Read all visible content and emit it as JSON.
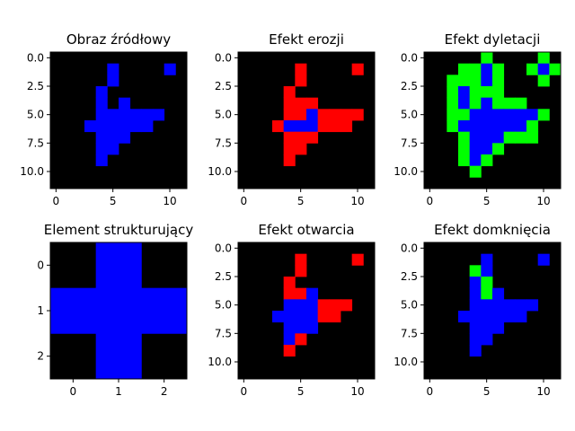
{
  "chart_data": [
    {
      "type": "heatmap",
      "title": "Obraz źródłowy",
      "grid_size": 12,
      "xticks": [
        0,
        5,
        10
      ],
      "yticks": [
        0.0,
        2.5,
        5.0,
        7.5,
        10.0
      ],
      "xtick_labels": [
        "0",
        "5",
        "10"
      ],
      "ytick_labels": [
        "0.0",
        "2.5",
        "5.0",
        "7.5",
        "10.0"
      ],
      "pixel_colors": {
        "1": "#0000ff"
      },
      "rows": [
        "000000000000",
        "000001000010",
        "000001000000",
        "000010000000",
        "000010100000",
        "000011111100",
        "000111111000",
        "000011100000",
        "000011000000",
        "000010000000",
        "000000000000",
        "000000000000"
      ]
    },
    {
      "type": "heatmap",
      "title": "Efekt erozji",
      "grid_size": 12,
      "xticks": [
        0,
        5,
        10
      ],
      "yticks": [
        0.0,
        2.5,
        5.0,
        7.5,
        10.0
      ],
      "xtick_labels": [
        "0",
        "5",
        "10"
      ],
      "ytick_labels": [
        "0.0",
        "2.5",
        "5.0",
        "7.5",
        "10.0"
      ],
      "pixel_colors": {
        "1": "#0000ff",
        "2": "#ff0000"
      },
      "rows": [
        "000000000000",
        "000002000020",
        "000002000000",
        "000020000000",
        "000022200000",
        "000022122220",
        "000211122200",
        "000022200000",
        "000022000000",
        "000020000000",
        "000000000000",
        "000000000000"
      ]
    },
    {
      "type": "heatmap",
      "title": "Efekt dyletacji",
      "grid_size": 12,
      "xticks": [
        0,
        5,
        10
      ],
      "yticks": [
        0.0,
        2.5,
        5.0,
        7.5,
        10.0
      ],
      "xtick_labels": [
        "0",
        "5",
        "10"
      ],
      "ytick_labels": [
        "0.0",
        "2.5",
        "5.0",
        "7.5",
        "10.0"
      ],
      "pixel_colors": {
        "1": "#0000ff",
        "3": "#00ff00"
      },
      "rows": [
        "000003000030",
        "000331300313",
        "003331300030",
        "003133300000",
        "003131333000",
        "003311111130",
        "003111111300",
        "000311133300",
        "000311300000",
        "000313000000",
        "000030000000",
        "000000000000"
      ]
    },
    {
      "type": "heatmap",
      "title": "Element strukturujący",
      "grid_size": 3,
      "xticks": [
        0,
        1,
        2
      ],
      "yticks": [
        0,
        1,
        2
      ],
      "xtick_labels": [
        "0",
        "1",
        "2"
      ],
      "ytick_labels": [
        "0",
        "1",
        "2"
      ],
      "pixel_colors": {
        "1": "#0000ff"
      },
      "rows": [
        "010",
        "111",
        "010"
      ]
    },
    {
      "type": "heatmap",
      "title": "Efekt otwarcia",
      "grid_size": 12,
      "xticks": [
        0,
        5,
        10
      ],
      "yticks": [
        0.0,
        2.5,
        5.0,
        7.5,
        10.0
      ],
      "xtick_labels": [
        "0",
        "5",
        "10"
      ],
      "ytick_labels": [
        "0.0",
        "2.5",
        "5.0",
        "7.5",
        "10.0"
      ],
      "pixel_colors": {
        "1": "#0000ff",
        "2": "#ff0000"
      },
      "rows": [
        "000000000000",
        "000002000020",
        "000002000000",
        "000020000000",
        "000022100000",
        "000011122200",
        "000111122000",
        "000011100000",
        "000012000000",
        "000020000000",
        "000000000000",
        "000000000000"
      ]
    },
    {
      "type": "heatmap",
      "title": "Efekt domknięcia",
      "grid_size": 12,
      "xticks": [
        0,
        5,
        10
      ],
      "yticks": [
        0.0,
        2.5,
        5.0,
        7.5,
        10.0
      ],
      "xtick_labels": [
        "0",
        "5",
        "10"
      ],
      "ytick_labels": [
        "0.0",
        "2.5",
        "5.0",
        "7.5",
        "10.0"
      ],
      "pixel_colors": {
        "1": "#0000ff",
        "3": "#00ff00"
      },
      "rows": [
        "000000000000",
        "000001000010",
        "000031000000",
        "000013000000",
        "000013100000",
        "000011111100",
        "000111111000",
        "000011100000",
        "000011000000",
        "000010000000",
        "000000000000",
        "000000000000"
      ]
    }
  ]
}
